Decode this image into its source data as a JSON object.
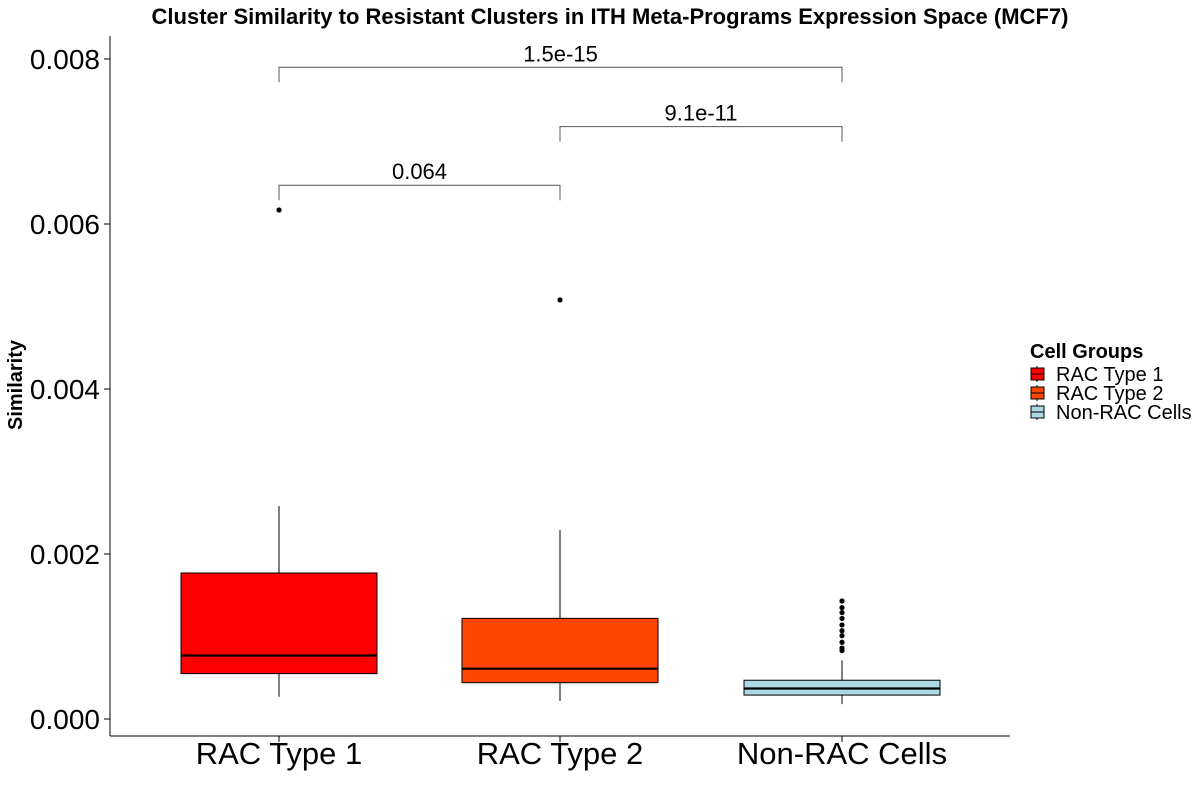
{
  "chart_data": {
    "type": "box",
    "title": "Cluster Similarity to Resistant Clusters in ITH Meta-Programs Expression Space (MCF7)",
    "xlabel": "",
    "ylabel": "Similarity",
    "ylim": [
      -0.0002,
      0.0082
    ],
    "yticks": [
      0.0,
      0.002,
      0.004,
      0.006,
      0.008
    ],
    "ytick_labels": [
      "0.000",
      "0.002",
      "0.004",
      "0.006",
      "0.008"
    ],
    "categories": [
      "RAC Type 1",
      "RAC Type 2",
      "Non-RAC Cells"
    ],
    "legend": {
      "title": "Cell Groups",
      "position": "right"
    },
    "grid": false,
    "series": [
      {
        "name": "RAC Type 1",
        "color": "#FF0000",
        "whisker_low": 0.00027,
        "q1": 0.00055,
        "median": 0.00077,
        "q3": 0.00177,
        "whisker_high": 0.00258,
        "outliers": [
          0.00617
        ]
      },
      {
        "name": "RAC Type 2",
        "color": "#FF4500",
        "whisker_low": 0.00022,
        "q1": 0.00044,
        "median": 0.00061,
        "q3": 0.00122,
        "whisker_high": 0.00229,
        "outliers": [
          0.00508
        ]
      },
      {
        "name": "Non-RAC Cells",
        "color": "#ADD8E6",
        "whisker_low": 0.00018,
        "q1": 0.00029,
        "median": 0.00037,
        "q3": 0.00047,
        "whisker_high": 0.00071,
        "outliers": [
          0.00083,
          0.00086,
          0.00093,
          0.00101,
          0.00107,
          0.00114,
          0.00122,
          0.00129,
          0.00135,
          0.00143
        ]
      }
    ],
    "comparisons": [
      {
        "from": "RAC Type 1",
        "to": "RAC Type 2",
        "label": "0.064",
        "y": 0.00647
      },
      {
        "from": "RAC Type 2",
        "to": "Non-RAC Cells",
        "label": "9.1e-11",
        "y": 0.00718
      },
      {
        "from": "RAC Type 1",
        "to": "Non-RAC Cells",
        "label": "1.5e-15",
        "y": 0.0079
      }
    ]
  }
}
